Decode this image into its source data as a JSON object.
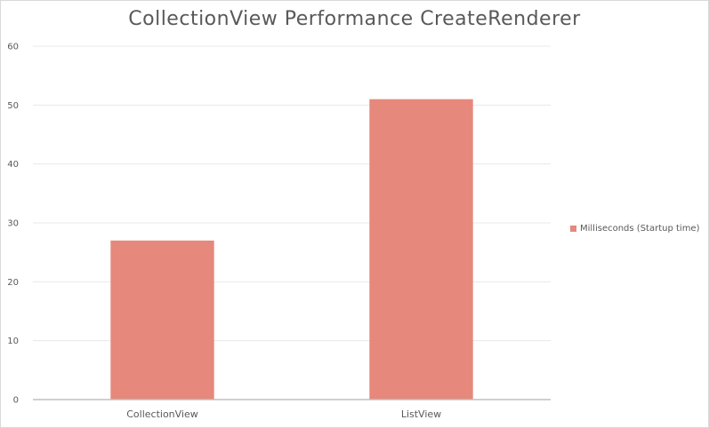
{
  "chart_data": {
    "type": "bar",
    "title": "CollectionView Performance CreateRenderer",
    "categories": [
      "CollectionView",
      "ListView"
    ],
    "series": [
      {
        "name": "Milliseconds (Startup time)",
        "values": [
          27,
          51
        ]
      }
    ],
    "ylim": [
      0,
      60
    ],
    "yticks": [
      0,
      10,
      20,
      30,
      40,
      50,
      60
    ],
    "xlabel": "",
    "ylabel": "",
    "grid": true,
    "legend_position": "right",
    "colors": {
      "bar": "#e6887b",
      "grid": "#e8e8e8",
      "axis": "#bfbfbf",
      "text": "#595959"
    }
  }
}
